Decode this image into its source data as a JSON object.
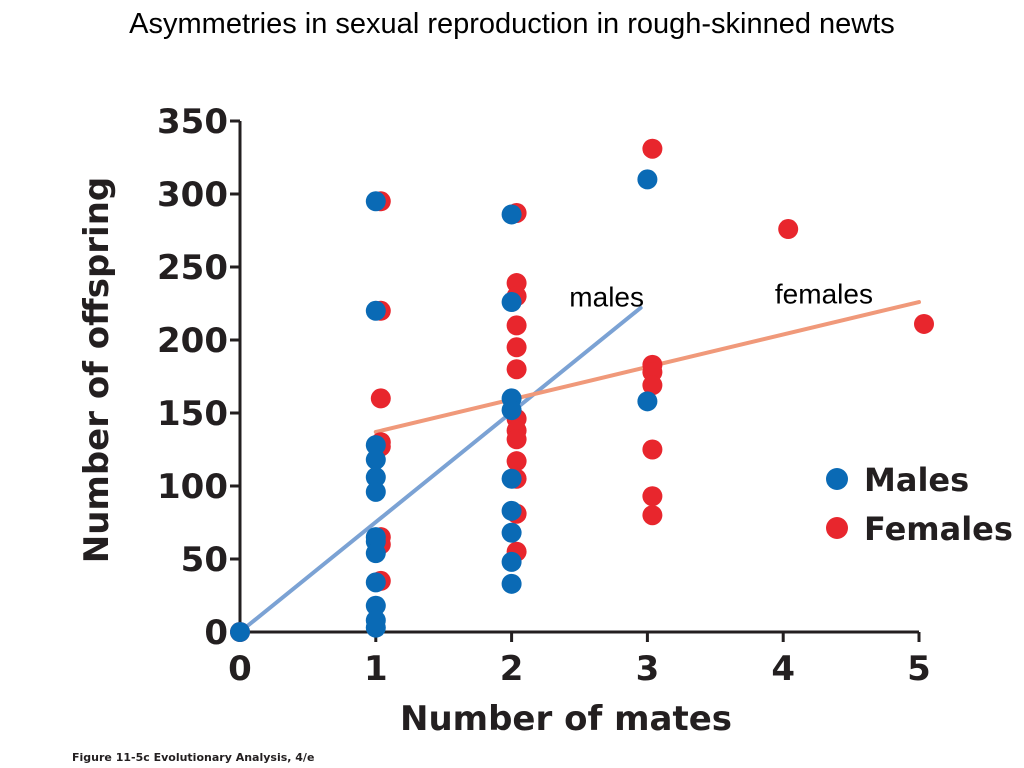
{
  "slide_title": "Asymmetries in sexual reproduction in rough-skinned newts",
  "caption": "Figure 11-5c  Evolutionary Analysis, 4/e",
  "colors": {
    "males": "#0a6ab5",
    "females": "#e8262d",
    "males_line": "#7ba2d4",
    "females_line": "#f0997a",
    "axis": "#231f20"
  },
  "chart_data": {
    "type": "scatter",
    "title": "",
    "xlabel": "Number of mates",
    "ylabel": "Number of offspring",
    "xlim": [
      0,
      5
    ],
    "ylim": [
      0,
      350
    ],
    "xticks": [
      "0",
      "1",
      "2",
      "3",
      "4",
      "5"
    ],
    "yticks": [
      "0",
      "50",
      "100",
      "150",
      "200",
      "250",
      "300",
      "350"
    ],
    "legend": {
      "position": "right",
      "entries": [
        "Males",
        "Females"
      ]
    },
    "series": [
      {
        "name": "Females",
        "color": "#e8262d",
        "points": [
          {
            "x": 0,
            "y": 0
          },
          {
            "x": 1,
            "y": 295
          },
          {
            "x": 1,
            "y": 220
          },
          {
            "x": 1,
            "y": 160
          },
          {
            "x": 1,
            "y": 130
          },
          {
            "x": 1,
            "y": 127
          },
          {
            "x": 1,
            "y": 65
          },
          {
            "x": 1,
            "y": 60
          },
          {
            "x": 1,
            "y": 35
          },
          {
            "x": 2,
            "y": 287
          },
          {
            "x": 2,
            "y": 239
          },
          {
            "x": 2,
            "y": 230
          },
          {
            "x": 2,
            "y": 210
          },
          {
            "x": 2,
            "y": 195
          },
          {
            "x": 2,
            "y": 180
          },
          {
            "x": 2,
            "y": 146
          },
          {
            "x": 2,
            "y": 138
          },
          {
            "x": 2,
            "y": 132
          },
          {
            "x": 2,
            "y": 117
          },
          {
            "x": 2,
            "y": 105
          },
          {
            "x": 2,
            "y": 81
          },
          {
            "x": 2,
            "y": 55
          },
          {
            "x": 3,
            "y": 331
          },
          {
            "x": 3,
            "y": 183
          },
          {
            "x": 3,
            "y": 178
          },
          {
            "x": 3,
            "y": 169
          },
          {
            "x": 3,
            "y": 125
          },
          {
            "x": 3,
            "y": 93
          },
          {
            "x": 3,
            "y": 80
          },
          {
            "x": 4,
            "y": 276
          },
          {
            "x": 5,
            "y": 211
          }
        ]
      },
      {
        "name": "Males",
        "color": "#0a6ab5",
        "points": [
          {
            "x": 0,
            "y": 0
          },
          {
            "x": 1,
            "y": 295
          },
          {
            "x": 1,
            "y": 220
          },
          {
            "x": 1,
            "y": 128
          },
          {
            "x": 1,
            "y": 118
          },
          {
            "x": 1,
            "y": 106
          },
          {
            "x": 1,
            "y": 96
          },
          {
            "x": 1,
            "y": 65
          },
          {
            "x": 1,
            "y": 62
          },
          {
            "x": 1,
            "y": 54
          },
          {
            "x": 1,
            "y": 34
          },
          {
            "x": 1,
            "y": 18
          },
          {
            "x": 1,
            "y": 8
          },
          {
            "x": 1,
            "y": 3
          },
          {
            "x": 2,
            "y": 286
          },
          {
            "x": 2,
            "y": 226
          },
          {
            "x": 2,
            "y": 160
          },
          {
            "x": 2,
            "y": 152
          },
          {
            "x": 2,
            "y": 105
          },
          {
            "x": 2,
            "y": 83
          },
          {
            "x": 2,
            "y": 68
          },
          {
            "x": 2,
            "y": 48
          },
          {
            "x": 2,
            "y": 33
          },
          {
            "x": 3,
            "y": 310
          },
          {
            "x": 3,
            "y": 158
          }
        ]
      }
    ],
    "trend_lines": [
      {
        "name": "males",
        "x": [
          0,
          2.95
        ],
        "y": [
          0,
          222
        ]
      },
      {
        "name": "females",
        "x": [
          1,
          5
        ],
        "y": [
          137,
          226
        ]
      }
    ],
    "annotations": [
      {
        "text": "males",
        "x": 2.7,
        "y": 223
      },
      {
        "text": "females",
        "x": 4.3,
        "y": 225
      }
    ]
  }
}
